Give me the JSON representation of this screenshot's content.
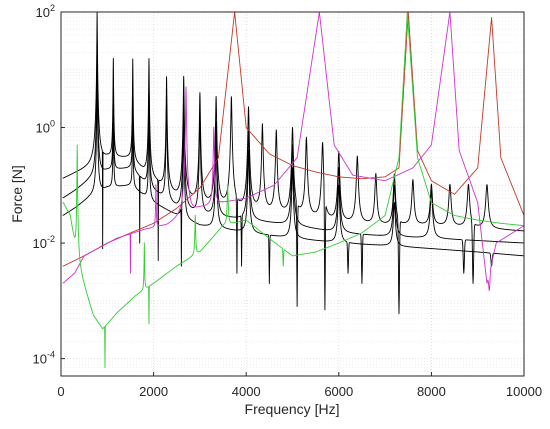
{
  "chart_data": {
    "type": "line",
    "title": "",
    "xlabel": "Frequency [Hz]",
    "ylabel": "Force [N]",
    "xlim": [
      0,
      10000
    ],
    "ylim": [
      5e-05,
      100
    ],
    "yscale": "log",
    "grid": true,
    "minor_grid": true,
    "legend": "none",
    "x_ticks": [
      {
        "value": 0,
        "label": "0"
      },
      {
        "value": 2000,
        "label": "2000"
      },
      {
        "value": 4000,
        "label": "4000"
      },
      {
        "value": 6000,
        "label": "6000"
      },
      {
        "value": 8000,
        "label": "8000"
      },
      {
        "value": 10000,
        "label": "10000"
      }
    ],
    "y_ticks": [
      {
        "value": 0.0001,
        "base": "10",
        "exp": "-4"
      },
      {
        "value": 0.01,
        "base": "10",
        "exp": "-2"
      },
      {
        "value": 1,
        "base": "10",
        "exp": "0"
      },
      {
        "value": 100,
        "base": "10",
        "exp": "2"
      }
    ],
    "series": [
      {
        "color": "#000000",
        "baseline": [
          [
            50,
            0.13
          ],
          [
            300,
            0.16
          ],
          [
            600,
            0.2
          ],
          [
            1000,
            0.3
          ],
          [
            1500,
            0.3
          ],
          [
            2000,
            0.12
          ],
          [
            2500,
            0.06
          ],
          [
            3000,
            0.045
          ],
          [
            4000,
            0.035
          ],
          [
            5000,
            0.03
          ],
          [
            6000,
            0.022
          ],
          [
            7000,
            0.02
          ],
          [
            8000,
            0.02
          ],
          [
            9000,
            0.018
          ],
          [
            10000,
            0.016
          ]
        ],
        "peaks": [
          [
            780,
            100
          ],
          [
            1130,
            15
          ],
          [
            1550,
            15
          ],
          [
            1900,
            15
          ],
          [
            2280,
            7
          ],
          [
            2650,
            7
          ],
          [
            3000,
            3.5
          ],
          [
            3350,
            3
          ],
          [
            3680,
            3
          ],
          [
            4050,
            2
          ],
          [
            4350,
            1
          ],
          [
            4650,
            0.8
          ],
          [
            5000,
            0.9
          ],
          [
            5300,
            0.6
          ],
          [
            5650,
            0.5
          ],
          [
            6000,
            0.35
          ],
          [
            6400,
            0.3
          ],
          [
            6800,
            0.15
          ],
          [
            7200,
            0.15
          ],
          [
            7600,
            0.12
          ],
          [
            8000,
            0.1
          ],
          [
            8400,
            0.1
          ],
          [
            8800,
            0.1
          ],
          [
            9200,
            0.1
          ]
        ],
        "notches": [
          [
            900,
            0.008
          ],
          [
            2100,
            0.005
          ],
          [
            3800,
            0.003
          ],
          [
            5100,
            0.0008
          ],
          [
            5700,
            0.0007
          ],
          [
            7300,
            0.0006
          ],
          [
            8900,
            0.002
          ]
        ]
      },
      {
        "color": "#000000",
        "baseline": [
          [
            50,
            0.06
          ],
          [
            300,
            0.08
          ],
          [
            600,
            0.12
          ],
          [
            1000,
            0.18
          ],
          [
            1500,
            0.2
          ],
          [
            2000,
            0.08
          ],
          [
            2500,
            0.04
          ],
          [
            3000,
            0.03
          ],
          [
            4000,
            0.025
          ],
          [
            5000,
            0.02
          ],
          [
            6000,
            0.015
          ],
          [
            7000,
            0.013
          ],
          [
            8000,
            0.012
          ],
          [
            9000,
            0.011
          ],
          [
            10000,
            0.01
          ]
        ],
        "peaks": [
          [
            780,
            30
          ],
          [
            1130,
            5
          ],
          [
            1550,
            5
          ],
          [
            1900,
            5
          ],
          [
            2280,
            3
          ],
          [
            2650,
            3
          ],
          [
            3000,
            1.5
          ],
          [
            3350,
            1.2
          ],
          [
            4050,
            0.9
          ],
          [
            5000,
            0.5
          ],
          [
            6000,
            0.2
          ],
          [
            7200,
            0.1
          ],
          [
            8000,
            0.08
          ]
        ],
        "notches": [
          [
            1700,
            0.01
          ],
          [
            3900,
            0.004
          ],
          [
            6500,
            0.002
          ],
          [
            8700,
            0.003
          ]
        ]
      },
      {
        "color": "#000000",
        "baseline": [
          [
            50,
            0.03
          ],
          [
            300,
            0.04
          ],
          [
            600,
            0.06
          ],
          [
            1000,
            0.09
          ],
          [
            1500,
            0.1
          ],
          [
            2000,
            0.05
          ],
          [
            2500,
            0.03
          ],
          [
            3000,
            0.02
          ],
          [
            4000,
            0.015
          ],
          [
            5000,
            0.012
          ],
          [
            6000,
            0.01
          ],
          [
            7000,
            0.009
          ],
          [
            8000,
            0.008
          ],
          [
            9000,
            0.007
          ],
          [
            10000,
            0.006
          ]
        ],
        "peaks": [
          [
            780,
            10
          ],
          [
            1130,
            2
          ],
          [
            1550,
            2
          ],
          [
            1900,
            2
          ],
          [
            2650,
            1
          ],
          [
            3350,
            0.6
          ],
          [
            4050,
            0.4
          ],
          [
            5000,
            0.2
          ],
          [
            6000,
            0.1
          ],
          [
            7200,
            0.05
          ]
        ],
        "notches": [
          [
            2600,
            0.004
          ],
          [
            4500,
            0.002
          ],
          [
            6200,
            0.003
          ],
          [
            9300,
            0.004
          ]
        ]
      },
      {
        "color": "#c0392b",
        "baseline": [
          [
            50,
            0.004
          ],
          [
            500,
            0.006
          ],
          [
            1000,
            0.01
          ],
          [
            1500,
            0.015
          ],
          [
            2000,
            0.022
          ],
          [
            2500,
            0.04
          ],
          [
            3000,
            0.09
          ],
          [
            3400,
            0.3
          ],
          [
            3750,
            100
          ],
          [
            4000,
            1.0
          ],
          [
            4500,
            0.35
          ],
          [
            5000,
            0.22
          ],
          [
            5500,
            0.17
          ],
          [
            6000,
            0.14
          ],
          [
            6500,
            0.13
          ],
          [
            7000,
            0.14
          ],
          [
            7300,
            0.2
          ],
          [
            7500,
            100
          ],
          [
            7700,
            0.4
          ],
          [
            8000,
            0.12
          ],
          [
            8500,
            0.07
          ],
          [
            9000,
            0.2
          ],
          [
            9300,
            80
          ],
          [
            9500,
            0.3
          ],
          [
            10000,
            0.03
          ]
        ],
        "peaks": [],
        "notches": []
      },
      {
        "color": "#cc33cc",
        "baseline": [
          [
            50,
            0.002
          ],
          [
            300,
            0.003
          ],
          [
            500,
            0.006
          ],
          [
            800,
            0.008
          ],
          [
            1200,
            0.012
          ],
          [
            1800,
            0.017
          ],
          [
            2300,
            0.02
          ],
          [
            2700,
            0.03
          ],
          [
            3000,
            0.04
          ],
          [
            3500,
            0.05
          ],
          [
            4000,
            0.06
          ],
          [
            4600,
            0.1
          ],
          [
            5100,
            0.3
          ],
          [
            5580,
            100
          ],
          [
            5900,
            0.5
          ],
          [
            6300,
            0.15
          ],
          [
            7000,
            0.12
          ],
          [
            7600,
            0.2
          ],
          [
            8000,
            0.5
          ],
          [
            8400,
            100
          ],
          [
            8600,
            0.4
          ],
          [
            9000,
            0.05
          ],
          [
            9200,
            0.002
          ],
          [
            9400,
            0.01
          ],
          [
            10000,
            0.02
          ]
        ],
        "peaks": [
          [
            2050,
            0.1
          ],
          [
            2700,
            5
          ],
          [
            3300,
            1
          ]
        ],
        "notches": [
          [
            1500,
            0.003
          ],
          [
            9250,
            0.0015
          ]
        ]
      },
      {
        "color": "#33cc33",
        "baseline": [
          [
            50,
            0.05
          ],
          [
            200,
            0.03
          ],
          [
            400,
            0.003
          ],
          [
            700,
            0.0005
          ],
          [
            900,
            0.0003
          ],
          [
            1200,
            0.0006
          ],
          [
            1600,
            0.0012
          ],
          [
            2000,
            0.002
          ],
          [
            2500,
            0.004
          ],
          [
            3000,
            0.007
          ],
          [
            3500,
            0.02
          ],
          [
            4000,
            0.025
          ],
          [
            4500,
            0.012
          ],
          [
            5000,
            0.006
          ],
          [
            5500,
            0.007
          ],
          [
            6000,
            0.01
          ],
          [
            6500,
            0.015
          ],
          [
            7000,
            0.03
          ],
          [
            7300,
            0.3
          ],
          [
            7480,
            100
          ],
          [
            7700,
            0.3
          ],
          [
            8000,
            0.05
          ],
          [
            8500,
            0.03
          ],
          [
            9000,
            0.025
          ],
          [
            9500,
            0.022
          ],
          [
            10000,
            0.02
          ]
        ],
        "peaks": [
          [
            350,
            0.5
          ],
          [
            1800,
            0.01
          ],
          [
            2900,
            0.03
          ],
          [
            3600,
            0.1
          ]
        ],
        "notches": [
          [
            950,
            7e-05
          ],
          [
            1900,
            0.0004
          ],
          [
            4800,
            0.004
          ]
        ]
      }
    ]
  }
}
